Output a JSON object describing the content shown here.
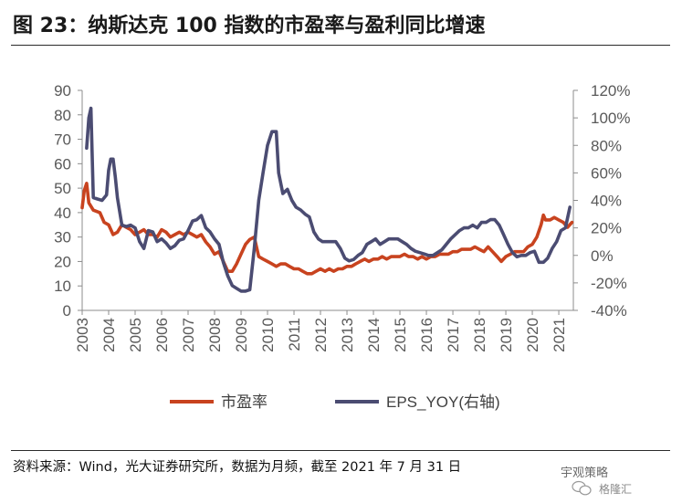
{
  "header": {
    "title": "图 23：纳斯达克 100 指数的市盈率与盈利同比增速"
  },
  "footer": {
    "source": "资料来源：Wind，光大证券研究所，数据为月频，截至 2021 年 7 月 31 日",
    "watermark": "宇观策略",
    "watermark_sub": "格隆汇"
  },
  "chart_data": {
    "type": "line",
    "xlabel": "",
    "ylabel": "",
    "x_tick_labels": [
      "2003",
      "2004",
      "2005",
      "2006",
      "2007",
      "2008",
      "2009",
      "2010",
      "2011",
      "2012",
      "2013",
      "2014",
      "2015",
      "2016",
      "2017",
      "2018",
      "2019",
      "2020",
      "2021"
    ],
    "y_left": {
      "range": [
        0,
        90
      ],
      "ticks": [
        "0",
        "10",
        "20",
        "30",
        "40",
        "50",
        "60",
        "70",
        "80",
        "90"
      ]
    },
    "y_right": {
      "range": [
        -40,
        120
      ],
      "unit": "%",
      "ticks": [
        "-40%",
        "-20%",
        "0%",
        "20%",
        "40%",
        "60%",
        "80%",
        "100%",
        "120%"
      ]
    },
    "grid": false,
    "legend": {
      "position": "bottom"
    },
    "series": [
      {
        "name": "市盈率",
        "axis": "left",
        "color": "#C8431F",
        "points": [
          [
            "2003.00",
            42
          ],
          [
            "2003.08",
            49
          ],
          [
            "2003.17",
            52
          ],
          [
            "2003.25",
            44
          ],
          [
            "2003.42",
            41
          ],
          [
            "2003.67",
            40
          ],
          [
            "2003.83",
            36
          ],
          [
            "2004.00",
            35
          ],
          [
            "2004.17",
            31
          ],
          [
            "2004.33",
            32
          ],
          [
            "2004.50",
            35
          ],
          [
            "2004.67",
            34
          ],
          [
            "2004.83",
            33
          ],
          [
            "2005.00",
            31
          ],
          [
            "2005.17",
            32
          ],
          [
            "2005.33",
            33
          ],
          [
            "2005.50",
            31
          ],
          [
            "2005.67",
            31
          ],
          [
            "2005.83",
            30
          ],
          [
            "2006.00",
            33
          ],
          [
            "2006.17",
            32
          ],
          [
            "2006.33",
            30
          ],
          [
            "2006.50",
            31
          ],
          [
            "2006.67",
            32
          ],
          [
            "2006.83",
            31
          ],
          [
            "2007.00",
            32
          ],
          [
            "2007.17",
            31
          ],
          [
            "2007.33",
            30
          ],
          [
            "2007.50",
            31
          ],
          [
            "2007.67",
            28
          ],
          [
            "2007.83",
            26
          ],
          [
            "2008.00",
            23
          ],
          [
            "2008.17",
            24
          ],
          [
            "2008.33",
            20
          ],
          [
            "2008.50",
            16
          ],
          [
            "2008.67",
            16
          ],
          [
            "2008.83",
            19
          ],
          [
            "2009.00",
            23
          ],
          [
            "2009.17",
            27
          ],
          [
            "2009.33",
            29
          ],
          [
            "2009.50",
            30
          ],
          [
            "2009.67",
            22
          ],
          [
            "2009.83",
            21
          ],
          [
            "2010.00",
            20
          ],
          [
            "2010.17",
            19
          ],
          [
            "2010.33",
            18
          ],
          [
            "2010.50",
            19
          ],
          [
            "2010.67",
            19
          ],
          [
            "2010.83",
            18
          ],
          [
            "2011.00",
            17
          ],
          [
            "2011.17",
            17
          ],
          [
            "2011.33",
            16
          ],
          [
            "2011.50",
            15
          ],
          [
            "2011.67",
            15
          ],
          [
            "2011.83",
            16
          ],
          [
            "2012.00",
            17
          ],
          [
            "2012.17",
            16
          ],
          [
            "2012.33",
            17
          ],
          [
            "2012.50",
            16
          ],
          [
            "2012.67",
            17
          ],
          [
            "2012.83",
            17
          ],
          [
            "2013.00",
            18
          ],
          [
            "2013.17",
            18
          ],
          [
            "2013.33",
            19
          ],
          [
            "2013.50",
            20
          ],
          [
            "2013.67",
            21
          ],
          [
            "2013.83",
            20
          ],
          [
            "2014.00",
            21
          ],
          [
            "2014.17",
            21
          ],
          [
            "2014.33",
            22
          ],
          [
            "2014.50",
            21
          ],
          [
            "2014.67",
            22
          ],
          [
            "2014.83",
            22
          ],
          [
            "2015.00",
            22
          ],
          [
            "2015.17",
            23
          ],
          [
            "2015.33",
            22
          ],
          [
            "2015.50",
            22
          ],
          [
            "2015.67",
            21
          ],
          [
            "2015.83",
            22
          ],
          [
            "2016.00",
            21
          ],
          [
            "2016.17",
            22
          ],
          [
            "2016.33",
            22
          ],
          [
            "2016.50",
            23
          ],
          [
            "2016.67",
            23
          ],
          [
            "2016.83",
            23
          ],
          [
            "2017.00",
            24
          ],
          [
            "2017.17",
            24
          ],
          [
            "2017.33",
            25
          ],
          [
            "2017.50",
            25
          ],
          [
            "2017.67",
            25
          ],
          [
            "2017.83",
            26
          ],
          [
            "2018.00",
            25
          ],
          [
            "2018.17",
            24
          ],
          [
            "2018.33",
            26
          ],
          [
            "2018.50",
            24
          ],
          [
            "2018.67",
            22
          ],
          [
            "2018.83",
            20
          ],
          [
            "2019.00",
            22
          ],
          [
            "2019.17",
            23
          ],
          [
            "2019.33",
            24
          ],
          [
            "2019.50",
            24
          ],
          [
            "2019.67",
            24
          ],
          [
            "2019.83",
            26
          ],
          [
            "2020.00",
            27
          ],
          [
            "2020.17",
            30
          ],
          [
            "2020.33",
            35
          ],
          [
            "2020.42",
            39
          ],
          [
            "2020.50",
            37
          ],
          [
            "2020.67",
            37
          ],
          [
            "2020.83",
            38
          ],
          [
            "2021.00",
            37
          ],
          [
            "2021.17",
            36
          ],
          [
            "2021.33",
            34
          ],
          [
            "2021.50",
            36
          ]
        ]
      },
      {
        "name": "EPS_YOY(右轴)",
        "axis": "right",
        "color": "#4B4C72",
        "points": [
          [
            "2003.17",
            78
          ],
          [
            "2003.25",
            100
          ],
          [
            "2003.33",
            107
          ],
          [
            "2003.42",
            42
          ],
          [
            "2003.58",
            41
          ],
          [
            "2003.75",
            40
          ],
          [
            "2003.92",
            44
          ],
          [
            "2004.00",
            62
          ],
          [
            "2004.08",
            70
          ],
          [
            "2004.17",
            70
          ],
          [
            "2004.25",
            57
          ],
          [
            "2004.33",
            42
          ],
          [
            "2004.50",
            22
          ],
          [
            "2004.67",
            21
          ],
          [
            "2004.83",
            22
          ],
          [
            "2005.00",
            20
          ],
          [
            "2005.17",
            10
          ],
          [
            "2005.33",
            5
          ],
          [
            "2005.50",
            18
          ],
          [
            "2005.67",
            17
          ],
          [
            "2005.83",
            10
          ],
          [
            "2006.00",
            12
          ],
          [
            "2006.17",
            9
          ],
          [
            "2006.33",
            5
          ],
          [
            "2006.50",
            7
          ],
          [
            "2006.67",
            11
          ],
          [
            "2006.83",
            12
          ],
          [
            "2007.00",
            18
          ],
          [
            "2007.17",
            25
          ],
          [
            "2007.33",
            26
          ],
          [
            "2007.50",
            29
          ],
          [
            "2007.67",
            20
          ],
          [
            "2007.83",
            17
          ],
          [
            "2008.00",
            12
          ],
          [
            "2008.17",
            8
          ],
          [
            "2008.33",
            -5
          ],
          [
            "2008.50",
            -15
          ],
          [
            "2008.67",
            -22
          ],
          [
            "2008.83",
            -24
          ],
          [
            "2009.00",
            -26
          ],
          [
            "2009.17",
            -26
          ],
          [
            "2009.33",
            -25
          ],
          [
            "2009.50",
            5
          ],
          [
            "2009.67",
            40
          ],
          [
            "2009.83",
            60
          ],
          [
            "2010.00",
            80
          ],
          [
            "2010.17",
            90
          ],
          [
            "2010.33",
            90
          ],
          [
            "2010.42",
            60
          ],
          [
            "2010.58",
            45
          ],
          [
            "2010.75",
            48
          ],
          [
            "2010.92",
            40
          ],
          [
            "2011.08",
            35
          ],
          [
            "2011.25",
            33
          ],
          [
            "2011.42",
            30
          ],
          [
            "2011.58",
            28
          ],
          [
            "2011.75",
            17
          ],
          [
            "2011.92",
            12
          ],
          [
            "2012.08",
            10
          ],
          [
            "2012.25",
            10
          ],
          [
            "2012.42",
            10
          ],
          [
            "2012.58",
            10
          ],
          [
            "2012.75",
            5
          ],
          [
            "2012.92",
            -2
          ],
          [
            "2013.08",
            -4
          ],
          [
            "2013.25",
            -3
          ],
          [
            "2013.42",
            0
          ],
          [
            "2013.58",
            2
          ],
          [
            "2013.75",
            8
          ],
          [
            "2013.92",
            10
          ],
          [
            "2014.08",
            12
          ],
          [
            "2014.25",
            8
          ],
          [
            "2014.42",
            10
          ],
          [
            "2014.58",
            12
          ],
          [
            "2014.75",
            12
          ],
          [
            "2014.92",
            12
          ],
          [
            "2015.08",
            10
          ],
          [
            "2015.25",
            8
          ],
          [
            "2015.42",
            5
          ],
          [
            "2015.58",
            3
          ],
          [
            "2015.75",
            2
          ],
          [
            "2015.92",
            1
          ],
          [
            "2016.08",
            0
          ],
          [
            "2016.25",
            0
          ],
          [
            "2016.42",
            2
          ],
          [
            "2016.58",
            4
          ],
          [
            "2016.75",
            8
          ],
          [
            "2016.92",
            12
          ],
          [
            "2017.08",
            15
          ],
          [
            "2017.25",
            18
          ],
          [
            "2017.42",
            20
          ],
          [
            "2017.58",
            20
          ],
          [
            "2017.75",
            22
          ],
          [
            "2017.92",
            20
          ],
          [
            "2018.08",
            24
          ],
          [
            "2018.25",
            24
          ],
          [
            "2018.42",
            26
          ],
          [
            "2018.58",
            26
          ],
          [
            "2018.75",
            22
          ],
          [
            "2018.92",
            15
          ],
          [
            "2019.08",
            8
          ],
          [
            "2019.25",
            2
          ],
          [
            "2019.42",
            -1
          ],
          [
            "2019.58",
            0
          ],
          [
            "2019.75",
            0
          ],
          [
            "2019.92",
            2
          ],
          [
            "2020.08",
            3
          ],
          [
            "2020.25",
            -5
          ],
          [
            "2020.42",
            -5
          ],
          [
            "2020.58",
            -2
          ],
          [
            "2020.75",
            5
          ],
          [
            "2020.92",
            10
          ],
          [
            "2021.08",
            18
          ],
          [
            "2021.25",
            20
          ],
          [
            "2021.42",
            35
          ]
        ]
      }
    ]
  }
}
